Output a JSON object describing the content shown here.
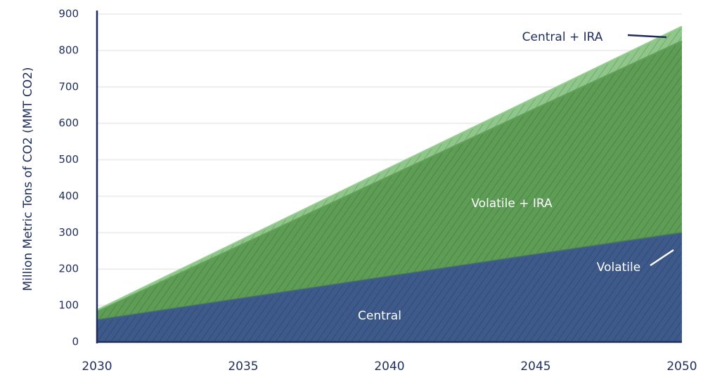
{
  "chart_data": {
    "type": "area",
    "y_label": "Million Metric Tons of CO2 (MMT CO2)",
    "x": [
      2030,
      2035,
      2040,
      2045,
      2050
    ],
    "xlim": [
      2030,
      2050
    ],
    "xticks": [
      2030,
      2035,
      2040,
      2045,
      2050
    ],
    "ylim": [
      0,
      900
    ],
    "yticks": [
      0,
      100,
      200,
      300,
      400,
      500,
      600,
      700,
      800,
      900
    ],
    "grid": true,
    "series": [
      {
        "name": "Central",
        "color": "#3d5a8a",
        "values": [
          58,
          118,
          178,
          238,
          297
        ]
      },
      {
        "name": "Volatile",
        "color": "#4f8a45",
        "values": [
          60,
          120,
          180,
          240,
          300
        ]
      },
      {
        "name": "Volatile + IRA",
        "color": "#5e9d55",
        "values": [
          82,
          268,
          454,
          640,
          825
        ]
      },
      {
        "name": "Central + IRA",
        "color": "#8fc689",
        "values": [
          87,
          282,
          477,
          671,
          865
        ]
      }
    ]
  }
}
